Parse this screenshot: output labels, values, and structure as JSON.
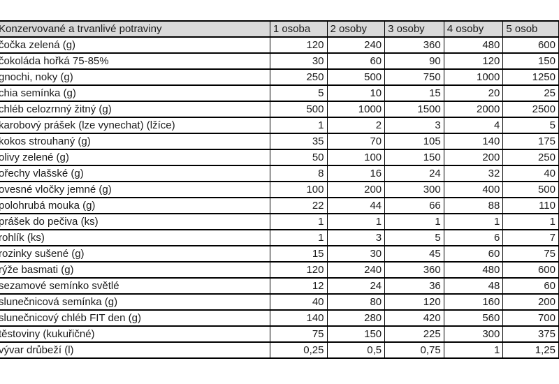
{
  "colors": {
    "header_bg": "#d9d9d9",
    "border": "#000000",
    "background": "#ffffff",
    "text": "#1a1a1a"
  },
  "table": {
    "header": [
      "Konzervované a trvanlivé potraviny",
      "1 osoba",
      "2 osoby",
      "3 osoby",
      "4 osoby",
      "5 osob"
    ],
    "rows": [
      {
        "label": "čočka zelená (g)",
        "values": [
          "120",
          "240",
          "360",
          "480",
          "600"
        ]
      },
      {
        "label": "čokoláda hořká 75-85%",
        "values": [
          "30",
          "60",
          "90",
          "120",
          "150"
        ]
      },
      {
        "label": "gnochi, noky (g)",
        "values": [
          "250",
          "500",
          "750",
          "1000",
          "1250"
        ]
      },
      {
        "label": "chia semínka (g)",
        "values": [
          "5",
          "10",
          "15",
          "20",
          "25"
        ]
      },
      {
        "label": "chléb celozrnný žitný (g)",
        "values": [
          "500",
          "1000",
          "1500",
          "2000",
          "2500"
        ]
      },
      {
        "label": "karobový prášek (lze vynechat) (lžíce)",
        "values": [
          "1",
          "2",
          "3",
          "4",
          "5"
        ]
      },
      {
        "label": "kokos strouhaný (g)",
        "values": [
          "35",
          "70",
          "105",
          "140",
          "175"
        ]
      },
      {
        "label": "olivy zelené (g)",
        "values": [
          "50",
          "100",
          "150",
          "200",
          "250"
        ]
      },
      {
        "label": "ořechy vlašské (g)",
        "values": [
          "8",
          "16",
          "24",
          "32",
          "40"
        ]
      },
      {
        "label": "ovesné vločky jemné (g)",
        "values": [
          "100",
          "200",
          "300",
          "400",
          "500"
        ]
      },
      {
        "label": "polohrubá mouka (g)",
        "values": [
          "22",
          "44",
          "66",
          "88",
          "110"
        ]
      },
      {
        "label": "prášek do pečiva (ks)",
        "values": [
          "1",
          "1",
          "1",
          "1",
          "1"
        ]
      },
      {
        "label": "rohlík (ks)",
        "values": [
          "1",
          "3",
          "5",
          "6",
          "7"
        ]
      },
      {
        "label": "rozinky sušené (g)",
        "values": [
          "15",
          "30",
          "45",
          "60",
          "75"
        ]
      },
      {
        "label": "rýže basmati (g)",
        "values": [
          "120",
          "240",
          "360",
          "480",
          "600"
        ]
      },
      {
        "label": "sezamové semínko světlé",
        "values": [
          "12",
          "24",
          "36",
          "48",
          "60"
        ]
      },
      {
        "label": "slunečnicová semínka (g)",
        "values": [
          "40",
          "80",
          "120",
          "160",
          "200"
        ]
      },
      {
        "label": "slunečnicový chléb FIT den (g)",
        "values": [
          "140",
          "280",
          "420",
          "560",
          "700"
        ]
      },
      {
        "label": "těstoviny (kukuřičné)",
        "values": [
          "75",
          "150",
          "225",
          "300",
          "375"
        ]
      },
      {
        "label": "vývar drůbeží (l)",
        "values": [
          "0,25",
          "0,5",
          "0,75",
          "1",
          "1,25"
        ]
      }
    ]
  },
  "chart_data": {
    "type": "table",
    "title": "Konzervované a trvanlivé potraviny",
    "columns": [
      "Konzervované a trvanlivé potraviny",
      "1 osoba",
      "2 osoby",
      "3 osoby",
      "4 osoby",
      "5 osob"
    ],
    "rows": [
      [
        "čočka zelená (g)",
        "120",
        "240",
        "360",
        "480",
        "600"
      ],
      [
        "čokoláda hořká 75-85%",
        "30",
        "60",
        "90",
        "120",
        "150"
      ],
      [
        "gnochi, noky (g)",
        "250",
        "500",
        "750",
        "1000",
        "1250"
      ],
      [
        "chia semínka (g)",
        "5",
        "10",
        "15",
        "20",
        "25"
      ],
      [
        "chléb celozrnný žitný (g)",
        "500",
        "1000",
        "1500",
        "2000",
        "2500"
      ],
      [
        "karobový prášek (lze vynechat) (lžíce)",
        "1",
        "2",
        "3",
        "4",
        "5"
      ],
      [
        "kokos strouhaný (g)",
        "35",
        "70",
        "105",
        "140",
        "175"
      ],
      [
        "olivy zelené (g)",
        "50",
        "100",
        "150",
        "200",
        "250"
      ],
      [
        "ořechy vlašské (g)",
        "8",
        "16",
        "24",
        "32",
        "40"
      ],
      [
        "ovesné vločky jemné (g)",
        "100",
        "200",
        "300",
        "400",
        "500"
      ],
      [
        "polohrubá mouka (g)",
        "22",
        "44",
        "66",
        "88",
        "110"
      ],
      [
        "prášek do pečiva (ks)",
        "1",
        "1",
        "1",
        "1",
        "1"
      ],
      [
        "rohlík (ks)",
        "1",
        "3",
        "5",
        "6",
        "7"
      ],
      [
        "rozinky sušené (g)",
        "15",
        "30",
        "45",
        "60",
        "75"
      ],
      [
        "rýže basmati (g)",
        "120",
        "240",
        "360",
        "480",
        "600"
      ],
      [
        "sezamové semínko světlé",
        "12",
        "24",
        "36",
        "48",
        "60"
      ],
      [
        "slunečnicová semínka (g)",
        "40",
        "80",
        "120",
        "160",
        "200"
      ],
      [
        "slunečnicový chléb FIT den (g)",
        "140",
        "280",
        "420",
        "560",
        "700"
      ],
      [
        "těstoviny (kukuřičné)",
        "75",
        "150",
        "225",
        "300",
        "375"
      ],
      [
        "vývar drůbeží (l)",
        "0,25",
        "0,5",
        "0,75",
        "1",
        "1,25"
      ]
    ]
  }
}
